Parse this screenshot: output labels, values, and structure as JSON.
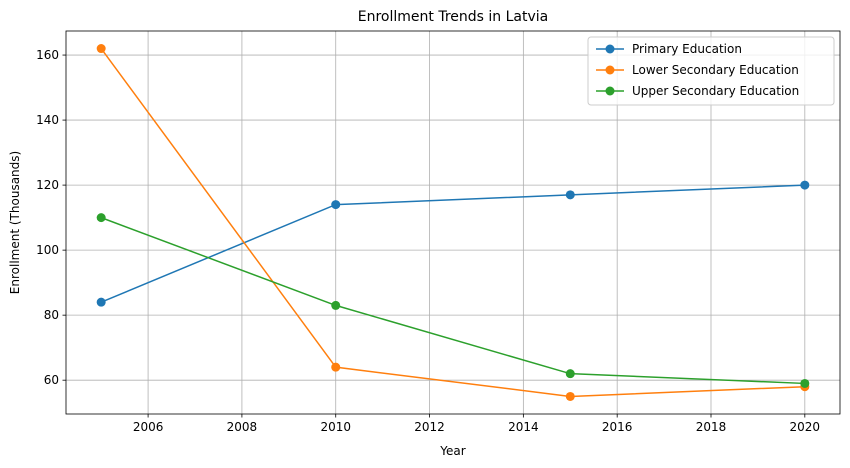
{
  "chart_data": {
    "type": "line",
    "title": "Enrollment Trends in Latvia",
    "xlabel": "Year",
    "ylabel": "Enrollment (Thousands)",
    "x": [
      2005,
      2010,
      2015,
      2020
    ],
    "xlim": [
      2004.25,
      2020.75
    ],
    "ylim": [
      49.6,
      167.4
    ],
    "xticks": [
      2006,
      2008,
      2010,
      2012,
      2014,
      2016,
      2018,
      2020
    ],
    "yticks": [
      60,
      80,
      100,
      120,
      140,
      160
    ],
    "grid": true,
    "legend_position": "top-right",
    "series": [
      {
        "name": "Primary Education",
        "color": "#1f77b4",
        "values": [
          84,
          114,
          117,
          120
        ]
      },
      {
        "name": "Lower Secondary Education",
        "color": "#ff7f0e",
        "values": [
          162,
          64,
          55,
          58
        ]
      },
      {
        "name": "Upper Secondary Education",
        "color": "#2ca02c",
        "values": [
          110,
          83,
          62,
          59
        ]
      }
    ]
  }
}
